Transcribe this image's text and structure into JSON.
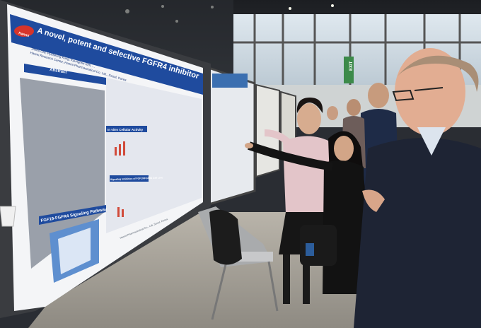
{
  "poster": {
    "logo": "Hanmi",
    "title_line1": "A novel, potent and selective FGFR4 inhibitor",
    "authors": "Jaeho Lee, Hyeseung Kang, Kyungmin Kim, ...",
    "affiliation": "Hanmi Research Center, Hanmi Pharmaceutical Co. Ltd., Seoul, Korea",
    "abstract_heading": "Abstract",
    "section_in_vitro": "In vitro Cellular Activity",
    "section_in_vivo": "Signaling Inhibition of FGF19/FGFR4 Cell Line",
    "pathway_heading": "FGF19-FGFR4 Signaling Pathway",
    "footer_credit": "Hanmi Pharmaceutical Co., Ltd, Seoul, Korea"
  },
  "venue": {
    "exit_sign": "EXIT"
  }
}
